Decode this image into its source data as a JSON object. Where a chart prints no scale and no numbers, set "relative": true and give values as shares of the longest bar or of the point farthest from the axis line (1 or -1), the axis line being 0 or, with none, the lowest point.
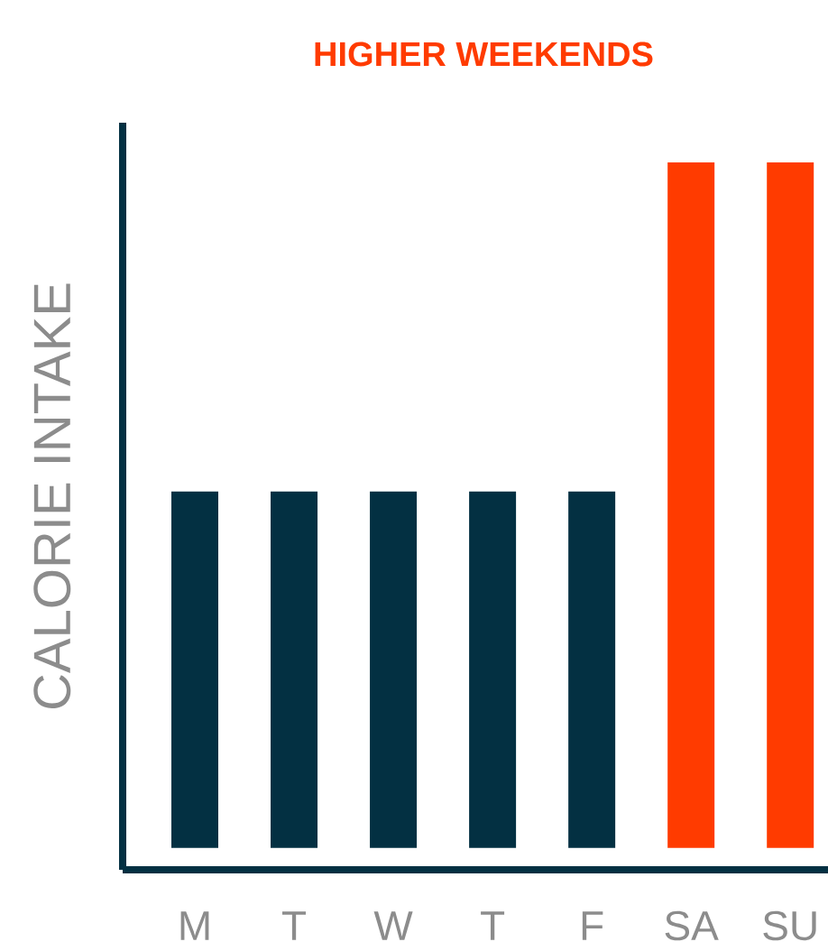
{
  "chart_data": {
    "type": "bar",
    "title": "HIGHER WEEKENDS",
    "ylabel": "CALORIE INTAKE",
    "categories": [
      "M",
      "T",
      "W",
      "T",
      "F",
      "SA",
      "SU"
    ],
    "values": [
      0.52,
      0.52,
      0.52,
      0.52,
      0.52,
      1,
      1
    ],
    "colors": [
      "#033042",
      "#033042",
      "#033042",
      "#033042",
      "#033042",
      "#ff3b00",
      "#ff3b00"
    ],
    "relative": true
  }
}
